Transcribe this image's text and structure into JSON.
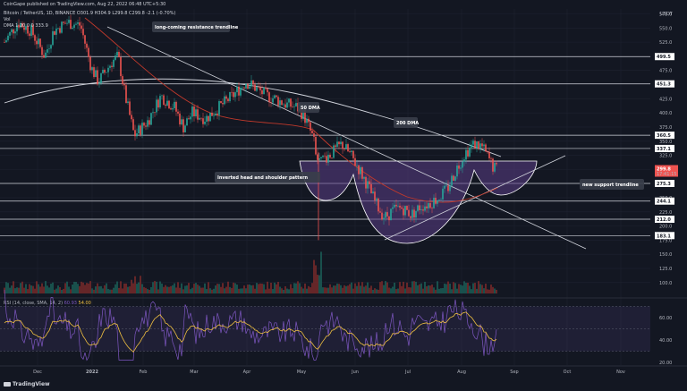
{
  "header": {
    "published": "CoinGape published on TradingView.com, Aug 22, 2022 06:48 UTC+5:30",
    "symbol_line": "Bitcoin / TetherUS, 1D, BINANCE",
    "ohlc": "O301.9 H304.9 L299.8 C299.8 -2.1 (-0.70%)",
    "vol_line": "Vol",
    "dma_line": "DMA 1 20 0 0 333.9"
  },
  "brand": "TradingView",
  "currency": "USDT",
  "colors": {
    "background": "#131722",
    "up": "#26a69a",
    "down": "#ef5350",
    "dma50": "#c0392b",
    "dma200": "#d1d4dc",
    "level": "#d1d4dc",
    "pattern_fill": "#5b3e86",
    "rsi_line": "#7e57c2",
    "rsi_sma": "#f0c040"
  },
  "chart_data": {
    "type": "candlestick",
    "y_ticks": [
      575.0,
      550.0,
      525.0,
      475.0,
      425.0,
      400.0,
      375.0,
      350.0,
      325.0,
      300.0,
      250.0,
      225.0,
      200.0,
      175.0,
      150.0,
      125.0,
      100.0
    ],
    "x_ticks": [
      "Dec",
      "2022",
      "Feb",
      "Mar",
      "Apr",
      "May",
      "Jun",
      "Jul",
      "Aug",
      "Sep",
      "Oct",
      "Nov"
    ],
    "levels": [
      499.5,
      451.3,
      360.5,
      337.1,
      275.3,
      244.1,
      212.0,
      183.1
    ],
    "last_price": 299.8,
    "last_countdown": "17:41:15",
    "ylim": [
      100,
      590
    ],
    "annotations": [
      "long-coming resistance trendline",
      "50 DMA",
      "200 DMA",
      "Inverted head and shoulder pattern",
      "new support trendline"
    ],
    "rsi": {
      "label": "RSI (14, close, SMA, 14, 2)",
      "value": "60.93",
      "sma_value": "54.00",
      "ticks": [
        60.0,
        40.0,
        20.0
      ],
      "ylim": [
        15,
        95
      ],
      "band": [
        30,
        70
      ]
    }
  }
}
